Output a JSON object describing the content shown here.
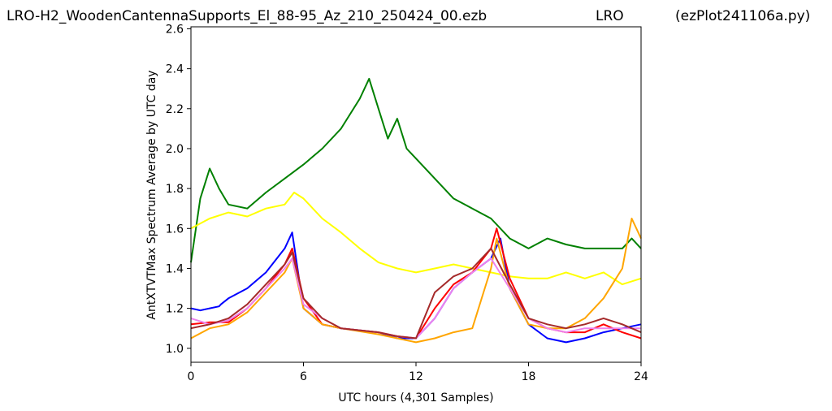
{
  "header": {
    "file_title": "LRO-H2_WoodenCantennaSupports_El_88-95_Az_210_250424_00.ezb",
    "site": "LRO",
    "script": "(ezPlot241106a.py)"
  },
  "chart_data": {
    "type": "line",
    "xlabel": "UTC hours  (4,301 Samples)",
    "ylabel": "AntXTVTMax Spectrum Average by UTC day",
    "xlim": [
      0,
      24
    ],
    "ylim": [
      0.93,
      2.61
    ],
    "xticks": [
      0,
      6,
      12,
      18,
      24
    ],
    "yticks": [
      1.0,
      1.2,
      1.4,
      1.6,
      1.8,
      2.0,
      2.2,
      2.4,
      2.6
    ],
    "grid": false,
    "series": [
      {
        "color": "#008000",
        "x": [
          0,
          0.5,
          1,
          1.5,
          2,
          3,
          4,
          5,
          6,
          7,
          8,
          9,
          9.5,
          10,
          10.5,
          11,
          11.5,
          12,
          13,
          14,
          15,
          16,
          17,
          18,
          19,
          20,
          21,
          22,
          23,
          23.5,
          24
        ],
        "y": [
          1.43,
          1.75,
          1.9,
          1.8,
          1.72,
          1.7,
          1.78,
          1.85,
          1.92,
          2.0,
          2.1,
          2.25,
          2.35,
          2.2,
          2.05,
          2.15,
          2.0,
          1.95,
          1.85,
          1.75,
          1.7,
          1.65,
          1.55,
          1.5,
          1.55,
          1.52,
          1.5,
          1.5,
          1.5,
          1.55,
          1.5
        ]
      },
      {
        "color": "#ffff00",
        "x": [
          0,
          1,
          2,
          3,
          4,
          5,
          5.5,
          6,
          7,
          8,
          9,
          10,
          11,
          12,
          13,
          14,
          15,
          16,
          17,
          18,
          19,
          20,
          21,
          22,
          23,
          24
        ],
        "y": [
          1.6,
          1.65,
          1.68,
          1.66,
          1.7,
          1.72,
          1.78,
          1.75,
          1.65,
          1.58,
          1.5,
          1.43,
          1.4,
          1.38,
          1.4,
          1.42,
          1.4,
          1.38,
          1.36,
          1.35,
          1.35,
          1.38,
          1.35,
          1.38,
          1.32,
          1.35
        ]
      },
      {
        "color": "#0000ff",
        "x": [
          0,
          0.5,
          1,
          1.5,
          1.6,
          2,
          3,
          4,
          5,
          5.4,
          6,
          7,
          8,
          10,
          11,
          12,
          13,
          14,
          15,
          16,
          16.5,
          17,
          18,
          19,
          20,
          21,
          22,
          23,
          24
        ],
        "y": [
          1.2,
          1.19,
          1.2,
          1.21,
          1.22,
          1.25,
          1.3,
          1.38,
          1.5,
          1.58,
          1.2,
          1.12,
          1.1,
          1.08,
          1.05,
          1.05,
          1.15,
          1.3,
          1.38,
          1.45,
          1.55,
          1.3,
          1.12,
          1.05,
          1.03,
          1.05,
          1.08,
          1.1,
          1.12
        ]
      },
      {
        "color": "#ff0000",
        "x": [
          0,
          1,
          2,
          3,
          4,
          5,
          5.4,
          6,
          7,
          8,
          10,
          11,
          12,
          13,
          14,
          15,
          16,
          16.3,
          17,
          18,
          19,
          20,
          21,
          22,
          23,
          24
        ],
        "y": [
          1.12,
          1.13,
          1.13,
          1.2,
          1.3,
          1.42,
          1.5,
          1.25,
          1.12,
          1.1,
          1.08,
          1.06,
          1.05,
          1.2,
          1.32,
          1.38,
          1.5,
          1.6,
          1.35,
          1.15,
          1.1,
          1.08,
          1.08,
          1.12,
          1.08,
          1.05
        ]
      },
      {
        "color": "#ffa500",
        "x": [
          0,
          1,
          2,
          3,
          4,
          5,
          5.4,
          6,
          7,
          8,
          10,
          11,
          12,
          13,
          14,
          15,
          16,
          16.3,
          17,
          18,
          19,
          20,
          21,
          22,
          23,
          23.5,
          24
        ],
        "y": [
          1.05,
          1.1,
          1.12,
          1.18,
          1.28,
          1.38,
          1.45,
          1.2,
          1.12,
          1.1,
          1.07,
          1.05,
          1.03,
          1.05,
          1.08,
          1.1,
          1.4,
          1.55,
          1.3,
          1.12,
          1.1,
          1.1,
          1.15,
          1.25,
          1.4,
          1.65,
          1.55
        ]
      },
      {
        "color": "#ee82ee",
        "x": [
          0,
          1,
          2,
          3,
          4,
          5,
          5.4,
          6,
          7,
          8,
          10,
          11,
          12,
          13,
          14,
          15,
          16,
          17,
          18,
          19,
          20,
          21,
          22,
          23,
          24
        ],
        "y": [
          1.15,
          1.12,
          1.14,
          1.2,
          1.3,
          1.4,
          1.45,
          1.22,
          1.15,
          1.1,
          1.08,
          1.06,
          1.05,
          1.15,
          1.3,
          1.38,
          1.45,
          1.3,
          1.15,
          1.1,
          1.08,
          1.1,
          1.1,
          1.1,
          1.1
        ]
      },
      {
        "color": "#a52a2a",
        "x": [
          0,
          1,
          2,
          3,
          4,
          5,
          5.4,
          6,
          7,
          8,
          10,
          11,
          12,
          13,
          14,
          15,
          16,
          17,
          18,
          19,
          20,
          21,
          22,
          23,
          24
        ],
        "y": [
          1.1,
          1.12,
          1.15,
          1.22,
          1.32,
          1.42,
          1.48,
          1.25,
          1.15,
          1.1,
          1.08,
          1.06,
          1.05,
          1.28,
          1.36,
          1.4,
          1.5,
          1.32,
          1.15,
          1.12,
          1.1,
          1.12,
          1.15,
          1.12,
          1.08
        ]
      }
    ]
  }
}
